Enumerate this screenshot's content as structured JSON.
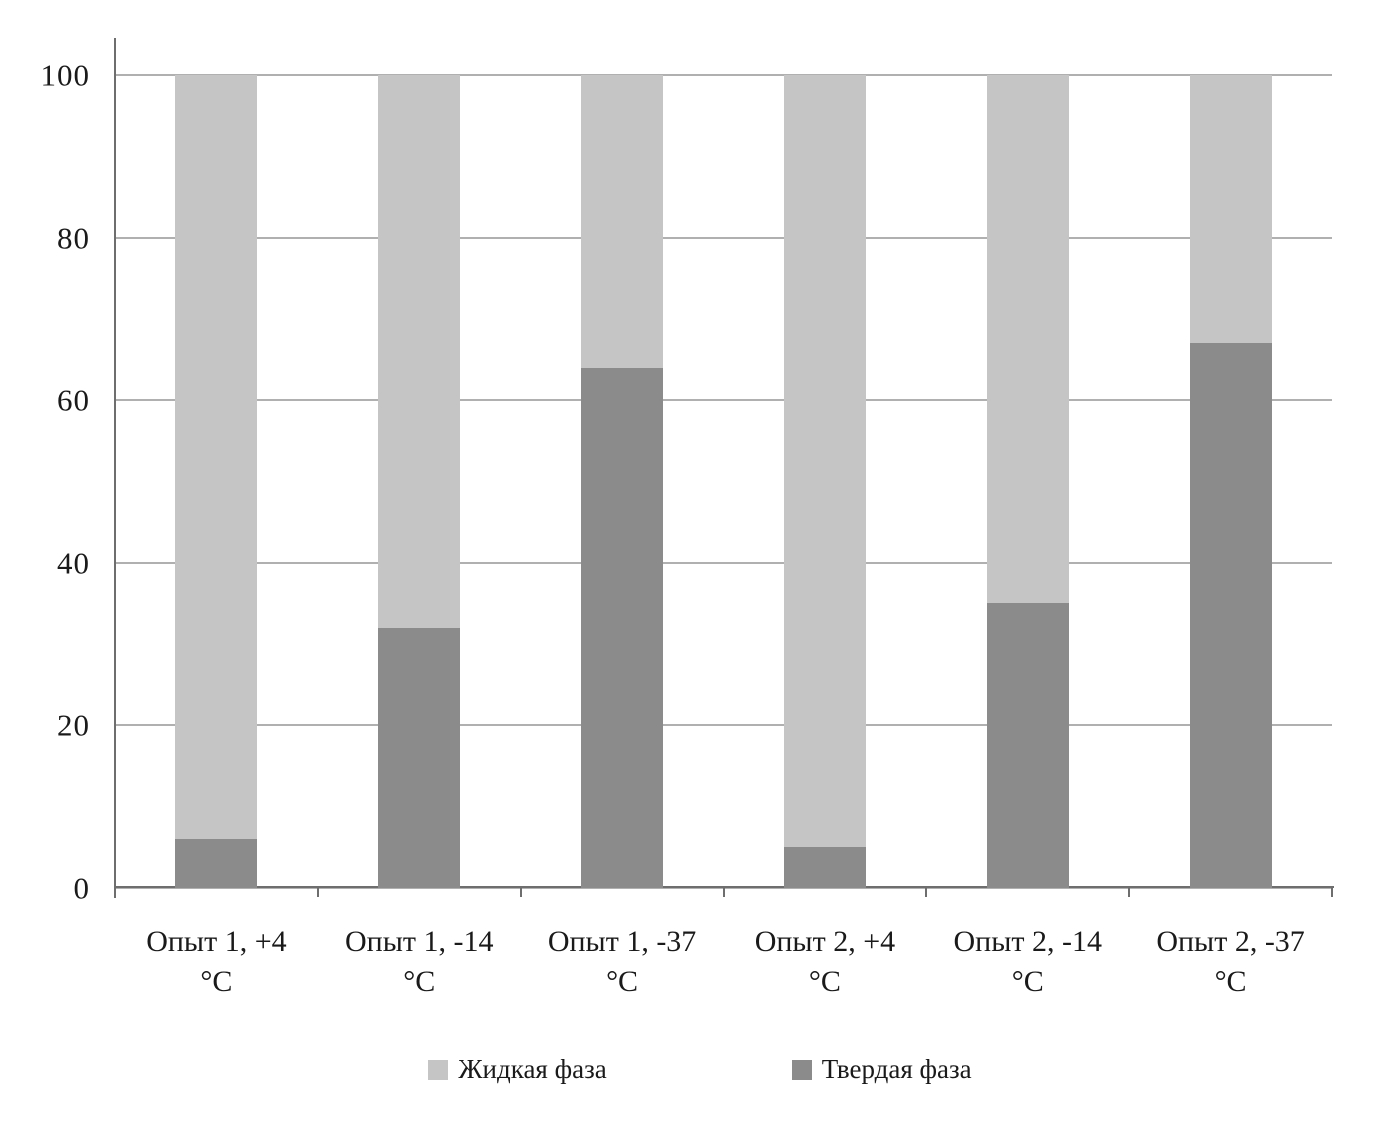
{
  "chart_data": {
    "type": "bar",
    "stacked": true,
    "title": "",
    "xlabel": "",
    "ylabel": "",
    "ylim": [
      0,
      100
    ],
    "yticks": [
      0,
      20,
      40,
      60,
      80,
      100
    ],
    "grid": true,
    "categories": [
      "Опыт 1, +4\n°С",
      "Опыт 1, -14\n°С",
      "Опыт 1, -37\n°С",
      "Опыт 2, +4\n°С",
      "Опыт 2, -14\n°С",
      "Опыт 2, -37\n°С"
    ],
    "series": [
      {
        "name": "Твердая фаза",
        "color": "#8b8b8b",
        "values": [
          6,
          32,
          64,
          5,
          35,
          67
        ]
      },
      {
        "name": "Жидкая фаза",
        "color": "#c5c5c5",
        "values": [
          94,
          68,
          36,
          95,
          65,
          33
        ]
      }
    ],
    "legend_position": "bottom",
    "legend": [
      {
        "label": "Жидкая фаза",
        "color": "#c5c5c5"
      },
      {
        "label": "Твердая фаза",
        "color": "#8b8b8b"
      }
    ],
    "colors": {
      "axis": "#6e6e6e",
      "gridline": "#b0b0b0",
      "background": "#ffffff"
    }
  }
}
